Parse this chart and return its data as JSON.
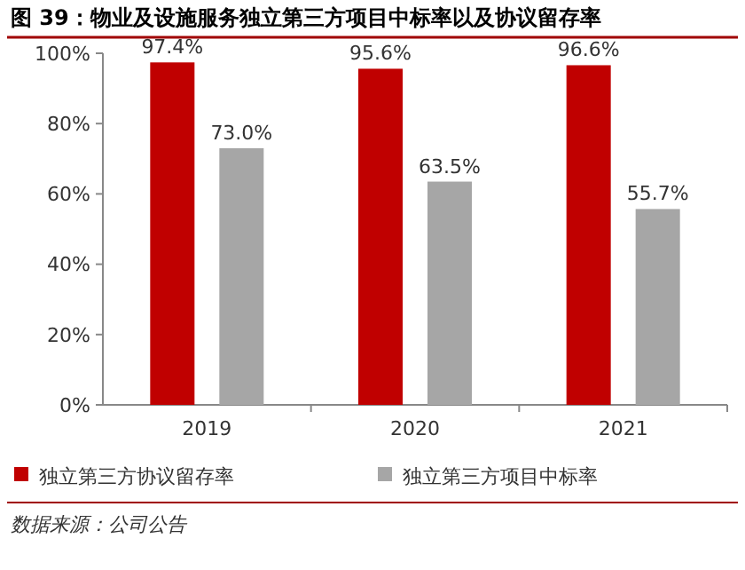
{
  "chart_data": {
    "type": "bar",
    "title": "图 39：物业及设施服务独立第三方项目中标率以及协议留存率",
    "categories": [
      "2019",
      "2020",
      "2021"
    ],
    "series": [
      {
        "name": "独立第三方协议留存率",
        "color": "#c00000",
        "values": [
          97.4,
          95.6,
          96.6
        ],
        "value_labels": [
          "97.4%",
          "95.6%",
          "96.6%"
        ]
      },
      {
        "name": "独立第三方项目中标率",
        "color": "#a6a6a6",
        "values": [
          73.0,
          63.5,
          55.7
        ],
        "value_labels": [
          "73.0%",
          "63.5%",
          "55.7%"
        ]
      }
    ],
    "ylim": [
      0,
      100
    ],
    "yticks": [
      {
        "value": 0,
        "label": "0%"
      },
      {
        "value": 20,
        "label": "20%"
      },
      {
        "value": 40,
        "label": "40%"
      },
      {
        "value": 60,
        "label": "60%"
      },
      {
        "value": 80,
        "label": "80%"
      },
      {
        "value": 100,
        "label": "100%"
      }
    ],
    "legend": "bottom",
    "annotations": [
      "数据来源：公司公告"
    ]
  }
}
